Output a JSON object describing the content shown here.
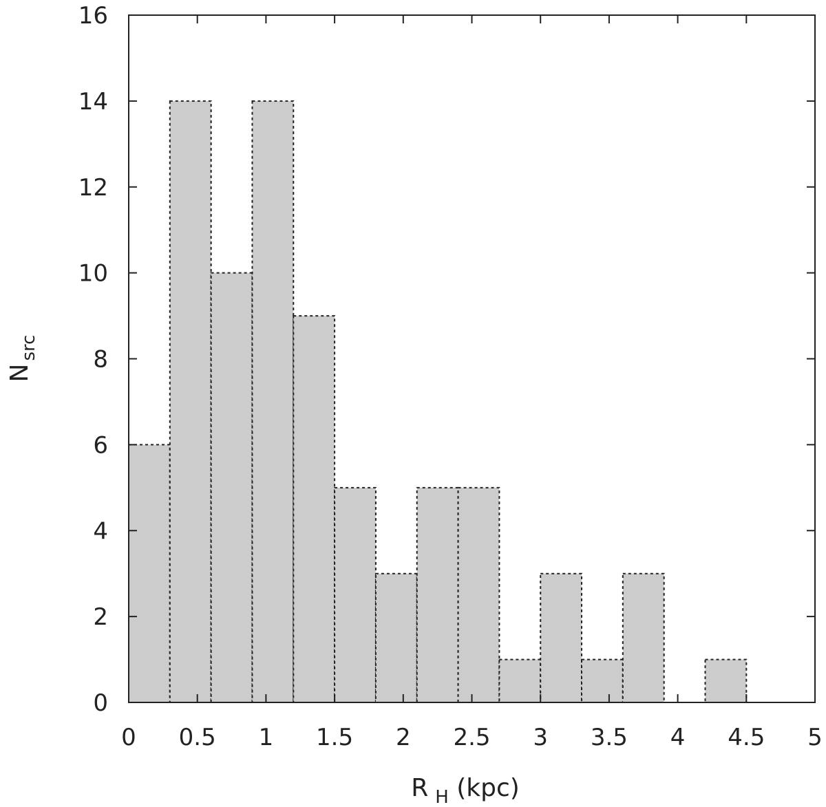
{
  "chart_data": {
    "type": "bar",
    "subtype": "histogram",
    "bins": [
      {
        "x0": 0.0,
        "x1": 0.3,
        "value": 6
      },
      {
        "x0": 0.3,
        "x1": 0.6,
        "value": 14
      },
      {
        "x0": 0.6,
        "x1": 0.9,
        "value": 10
      },
      {
        "x0": 0.9,
        "x1": 1.2,
        "value": 14
      },
      {
        "x0": 1.2,
        "x1": 1.5,
        "value": 9
      },
      {
        "x0": 1.5,
        "x1": 1.8,
        "value": 5
      },
      {
        "x0": 1.8,
        "x1": 2.1,
        "value": 3
      },
      {
        "x0": 2.1,
        "x1": 2.4,
        "value": 5
      },
      {
        "x0": 2.4,
        "x1": 2.7,
        "value": 5
      },
      {
        "x0": 2.7,
        "x1": 3.0,
        "value": 1
      },
      {
        "x0": 3.0,
        "x1": 3.3,
        "value": 3
      },
      {
        "x0": 3.3,
        "x1": 3.6,
        "value": 1
      },
      {
        "x0": 3.6,
        "x1": 3.9,
        "value": 3
      },
      {
        "x0": 3.9,
        "x1": 4.2,
        "value": 0
      },
      {
        "x0": 4.2,
        "x1": 4.5,
        "value": 1
      }
    ],
    "xlim": [
      0,
      5
    ],
    "ylim": [
      0,
      16
    ],
    "xticks": [
      "0",
      "0.5",
      "1",
      "1.5",
      "2",
      "2.5",
      "3",
      "3.5",
      "4",
      "4.5",
      "5"
    ],
    "yticks": [
      "0",
      "2",
      "4",
      "6",
      "8",
      "10",
      "12",
      "14",
      "16"
    ],
    "xlabel": {
      "main": "R",
      "sub": "H",
      "tail": " (kpc)"
    },
    "ylabel": {
      "main": "N",
      "sub": "src"
    },
    "grid": false,
    "colors": {
      "bar_fill": "#cccccc",
      "bar_edge": "#222222",
      "axis": "#222222"
    }
  }
}
